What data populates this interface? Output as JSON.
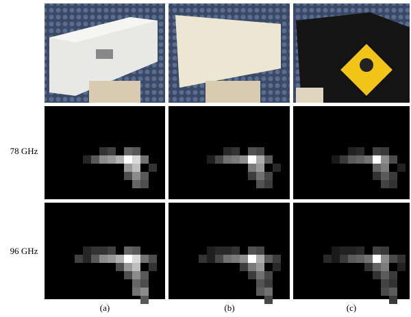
{
  "row_labels": [
    "78 GHz",
    "96 GHz"
  ],
  "captions": [
    "(a)",
    "(b)",
    "(c)"
  ]
}
